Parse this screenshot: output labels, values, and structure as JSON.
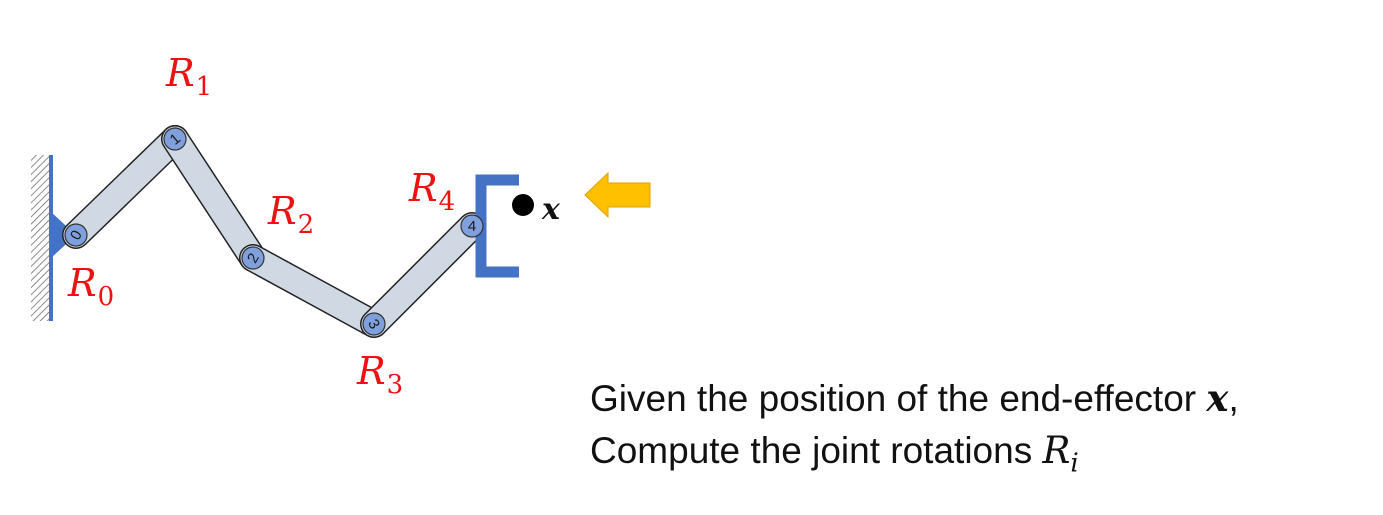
{
  "joints": [
    {
      "num": "0",
      "label": "R",
      "sub": "0"
    },
    {
      "num": "1",
      "label": "R",
      "sub": "1"
    },
    {
      "num": "2",
      "label": "R",
      "sub": "2"
    },
    {
      "num": "3",
      "label": "R",
      "sub": "3"
    },
    {
      "num": "4",
      "label": "R",
      "sub": "4"
    }
  ],
  "target": {
    "label": "x"
  },
  "caption": {
    "line1_text": "Given the position of the end-effector ",
    "line1_var": "x",
    "line1_end": ",",
    "line2_text": "Compute the joint rotations ",
    "line2_var": "R",
    "line2_sub": "i"
  },
  "colors": {
    "link_fill": "#d0d8e4",
    "joint_fill": "#7fa0dc",
    "gripper": "#4472c4",
    "arrow": "#ffc000",
    "label_red": "#ee1111"
  }
}
